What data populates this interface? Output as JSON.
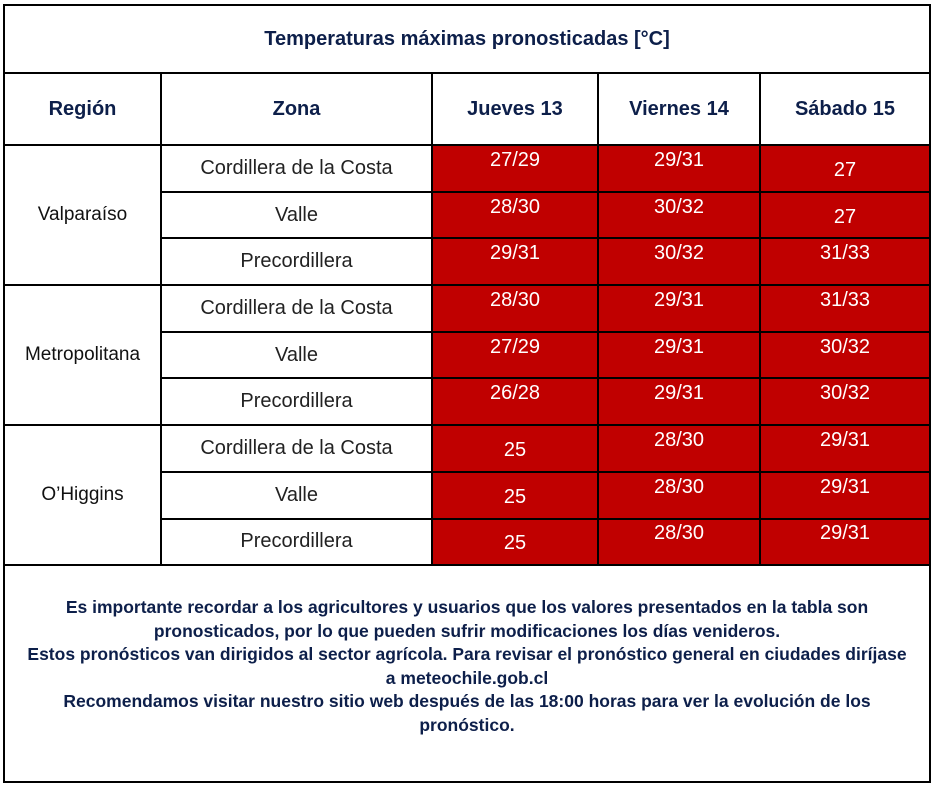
{
  "title": "Temperaturas máximas pronosticadas [°C]",
  "headers": [
    "Región",
    "Zona",
    "Jueves 13",
    "Viernes 14",
    "Sábado 15"
  ],
  "regions": [
    {
      "name": "Valparaíso",
      "rows": [
        {
          "zona": "Cordillera de la Costa",
          "values": [
            "27/29",
            "29/31",
            "27"
          ]
        },
        {
          "zona": "Valle",
          "values": [
            "28/30",
            "30/32",
            "27"
          ]
        },
        {
          "zona": "Precordillera",
          "values": [
            "29/31",
            "30/32",
            "31/33"
          ]
        }
      ]
    },
    {
      "name": "Metropolitana",
      "rows": [
        {
          "zona": "Cordillera de la Costa",
          "values": [
            "28/30",
            "29/31",
            "31/33"
          ]
        },
        {
          "zona": "Valle",
          "values": [
            "27/29",
            "29/31",
            "30/32"
          ]
        },
        {
          "zona": "Precordillera",
          "values": [
            "26/28",
            "29/31",
            "30/32"
          ]
        }
      ]
    },
    {
      "name": "O’Higgins",
      "rows": [
        {
          "zona": "Cordillera de la Costa",
          "values": [
            "25",
            "28/30",
            "29/31"
          ]
        },
        {
          "zona": "Valle",
          "values": [
            "25",
            "28/30",
            "29/31"
          ]
        },
        {
          "zona": "Precordillera",
          "values": [
            "25",
            "28/30",
            "29/31"
          ]
        }
      ]
    }
  ],
  "footer": [
    "Es importante recordar a los agricultores y usuarios que los valores presentados en la tabla son pronosticados, por lo que pueden sufrir modificaciones los días venideros.",
    "Estos pronósticos van dirigidos al sector agrícola. Para revisar el pronóstico general en ciudades diríjase a meteochile.gob.cl",
    "Recomendamos visitar nuestro sitio web después de las 18:00 horas para ver la evolución de los pronóstico."
  ],
  "colors": {
    "hot": "#c00000",
    "text": "#0d1f4a"
  }
}
